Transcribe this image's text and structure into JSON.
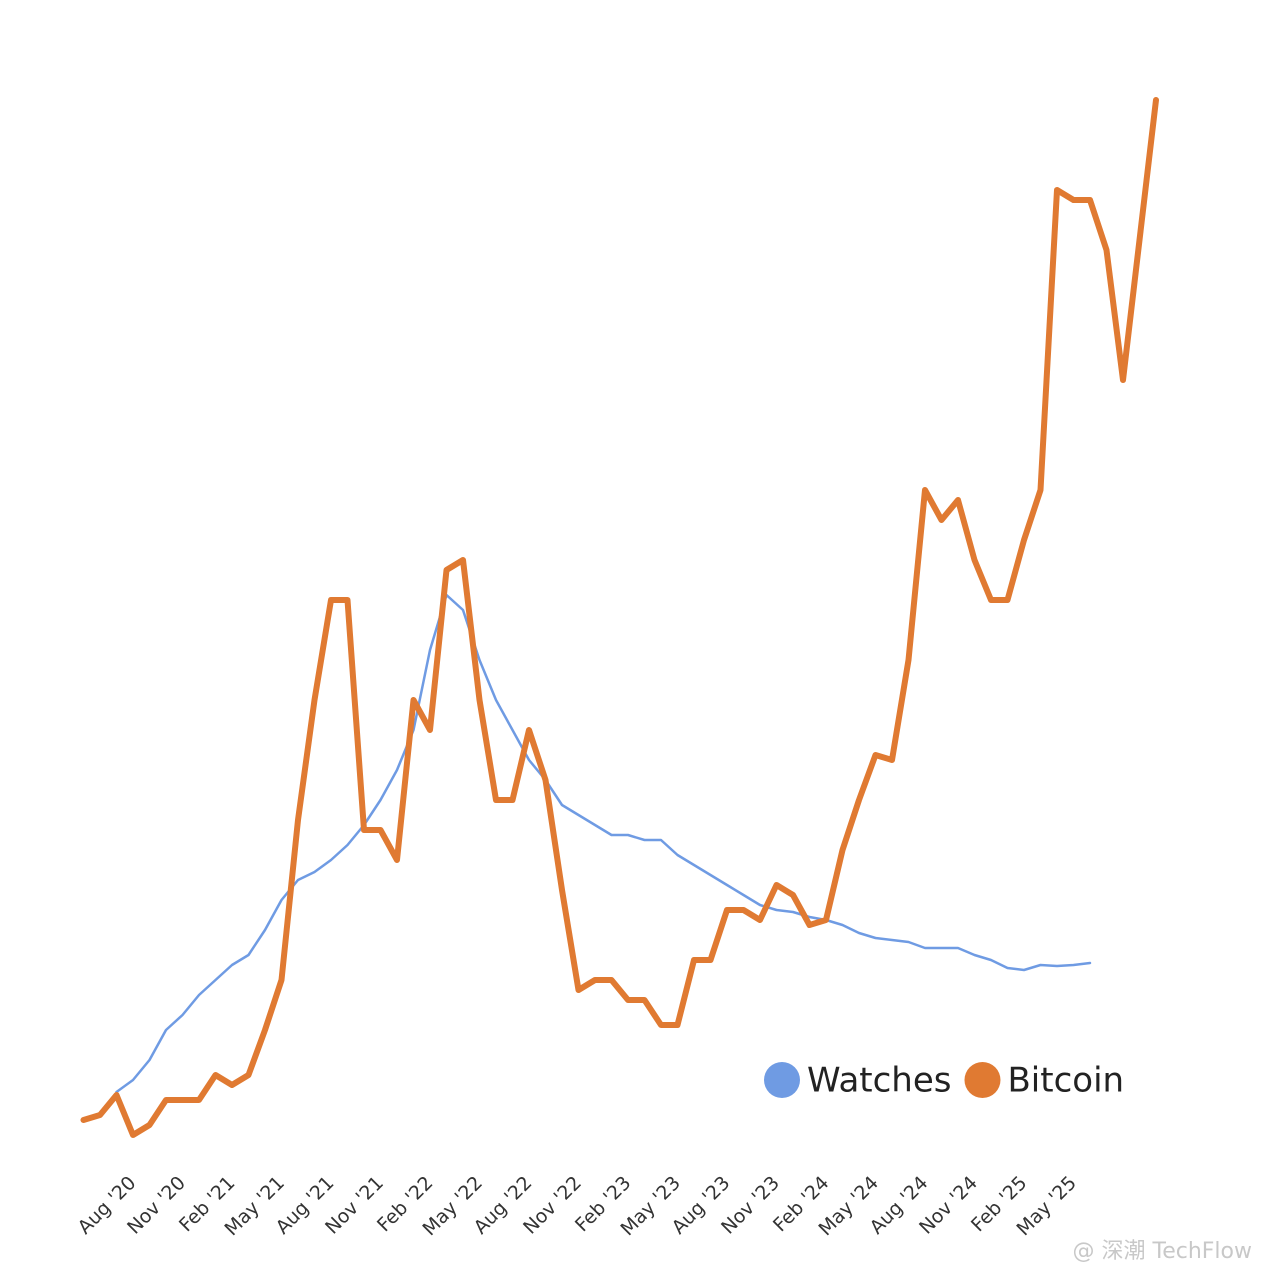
{
  "chart_data": {
    "type": "line",
    "categories": [
      null,
      null,
      null,
      "Aug '20",
      null,
      null,
      "Nov '20",
      null,
      null,
      "Feb '21",
      null,
      null,
      "May '21",
      null,
      null,
      "Aug '21",
      null,
      null,
      "Nov '21",
      null,
      null,
      "Feb '22",
      null,
      null,
      "May '22",
      null,
      null,
      "Aug '22",
      null,
      null,
      "Nov '22",
      null,
      null,
      "Feb '23",
      null,
      null,
      "May '23",
      null,
      null,
      "Aug '23",
      null,
      null,
      "Nov '23",
      null,
      null,
      "Feb '24",
      null,
      null,
      "May '24",
      null,
      null,
      "Aug '24",
      null,
      null,
      "Nov '24",
      null,
      null,
      "Feb '25",
      null,
      null,
      "May '25",
      null,
      null,
      null,
      null,
      null
    ],
    "series": [
      {
        "name": "Watches",
        "color": "#6f9be3",
        "values": [
          null,
          null,
          5.8,
          7,
          9,
          12,
          13.5,
          15.5,
          17,
          18.5,
          19.5,
          22,
          25,
          27,
          27.8,
          29,
          30.5,
          32.5,
          35,
          38,
          42,
          50,
          55.5,
          54,
          49,
          45,
          42,
          39,
          37,
          34.5,
          33.5,
          32.5,
          31.5,
          31.5,
          31,
          31,
          29.5,
          28.5,
          27.5,
          26.5,
          25.5,
          24.5,
          24,
          23.8,
          23.3,
          23,
          22.5,
          21.7,
          21.2,
          21,
          20.8,
          20.2,
          20.2,
          20.2,
          19.5,
          19,
          18.2,
          18,
          18.5,
          18.4,
          18.5,
          18.7,
          null,
          null,
          null,
          null
        ]
      },
      {
        "name": "Bitcoin",
        "color": "#e07a32",
        "values": [
          3,
          3.5,
          5.5,
          1.5,
          2.5,
          5,
          5,
          5,
          7.5,
          6.5,
          7.5,
          12,
          17,
          33,
          45,
          55,
          55,
          32,
          32,
          29,
          45,
          42,
          58,
          59,
          45,
          35,
          35,
          42,
          37,
          26,
          16,
          17,
          17,
          15,
          15,
          12.5,
          12.5,
          19,
          19,
          24,
          24,
          23,
          26.5,
          25.5,
          22.5,
          23,
          30,
          35,
          39.5,
          39,
          49,
          66,
          63,
          65,
          59,
          55,
          55,
          61,
          66,
          96,
          95,
          95,
          90,
          77,
          91,
          105
        ]
      }
    ],
    "ylim": [
      0,
      108
    ],
    "legend": "lower right",
    "watermark": "@ 深潮 TechFlow"
  }
}
